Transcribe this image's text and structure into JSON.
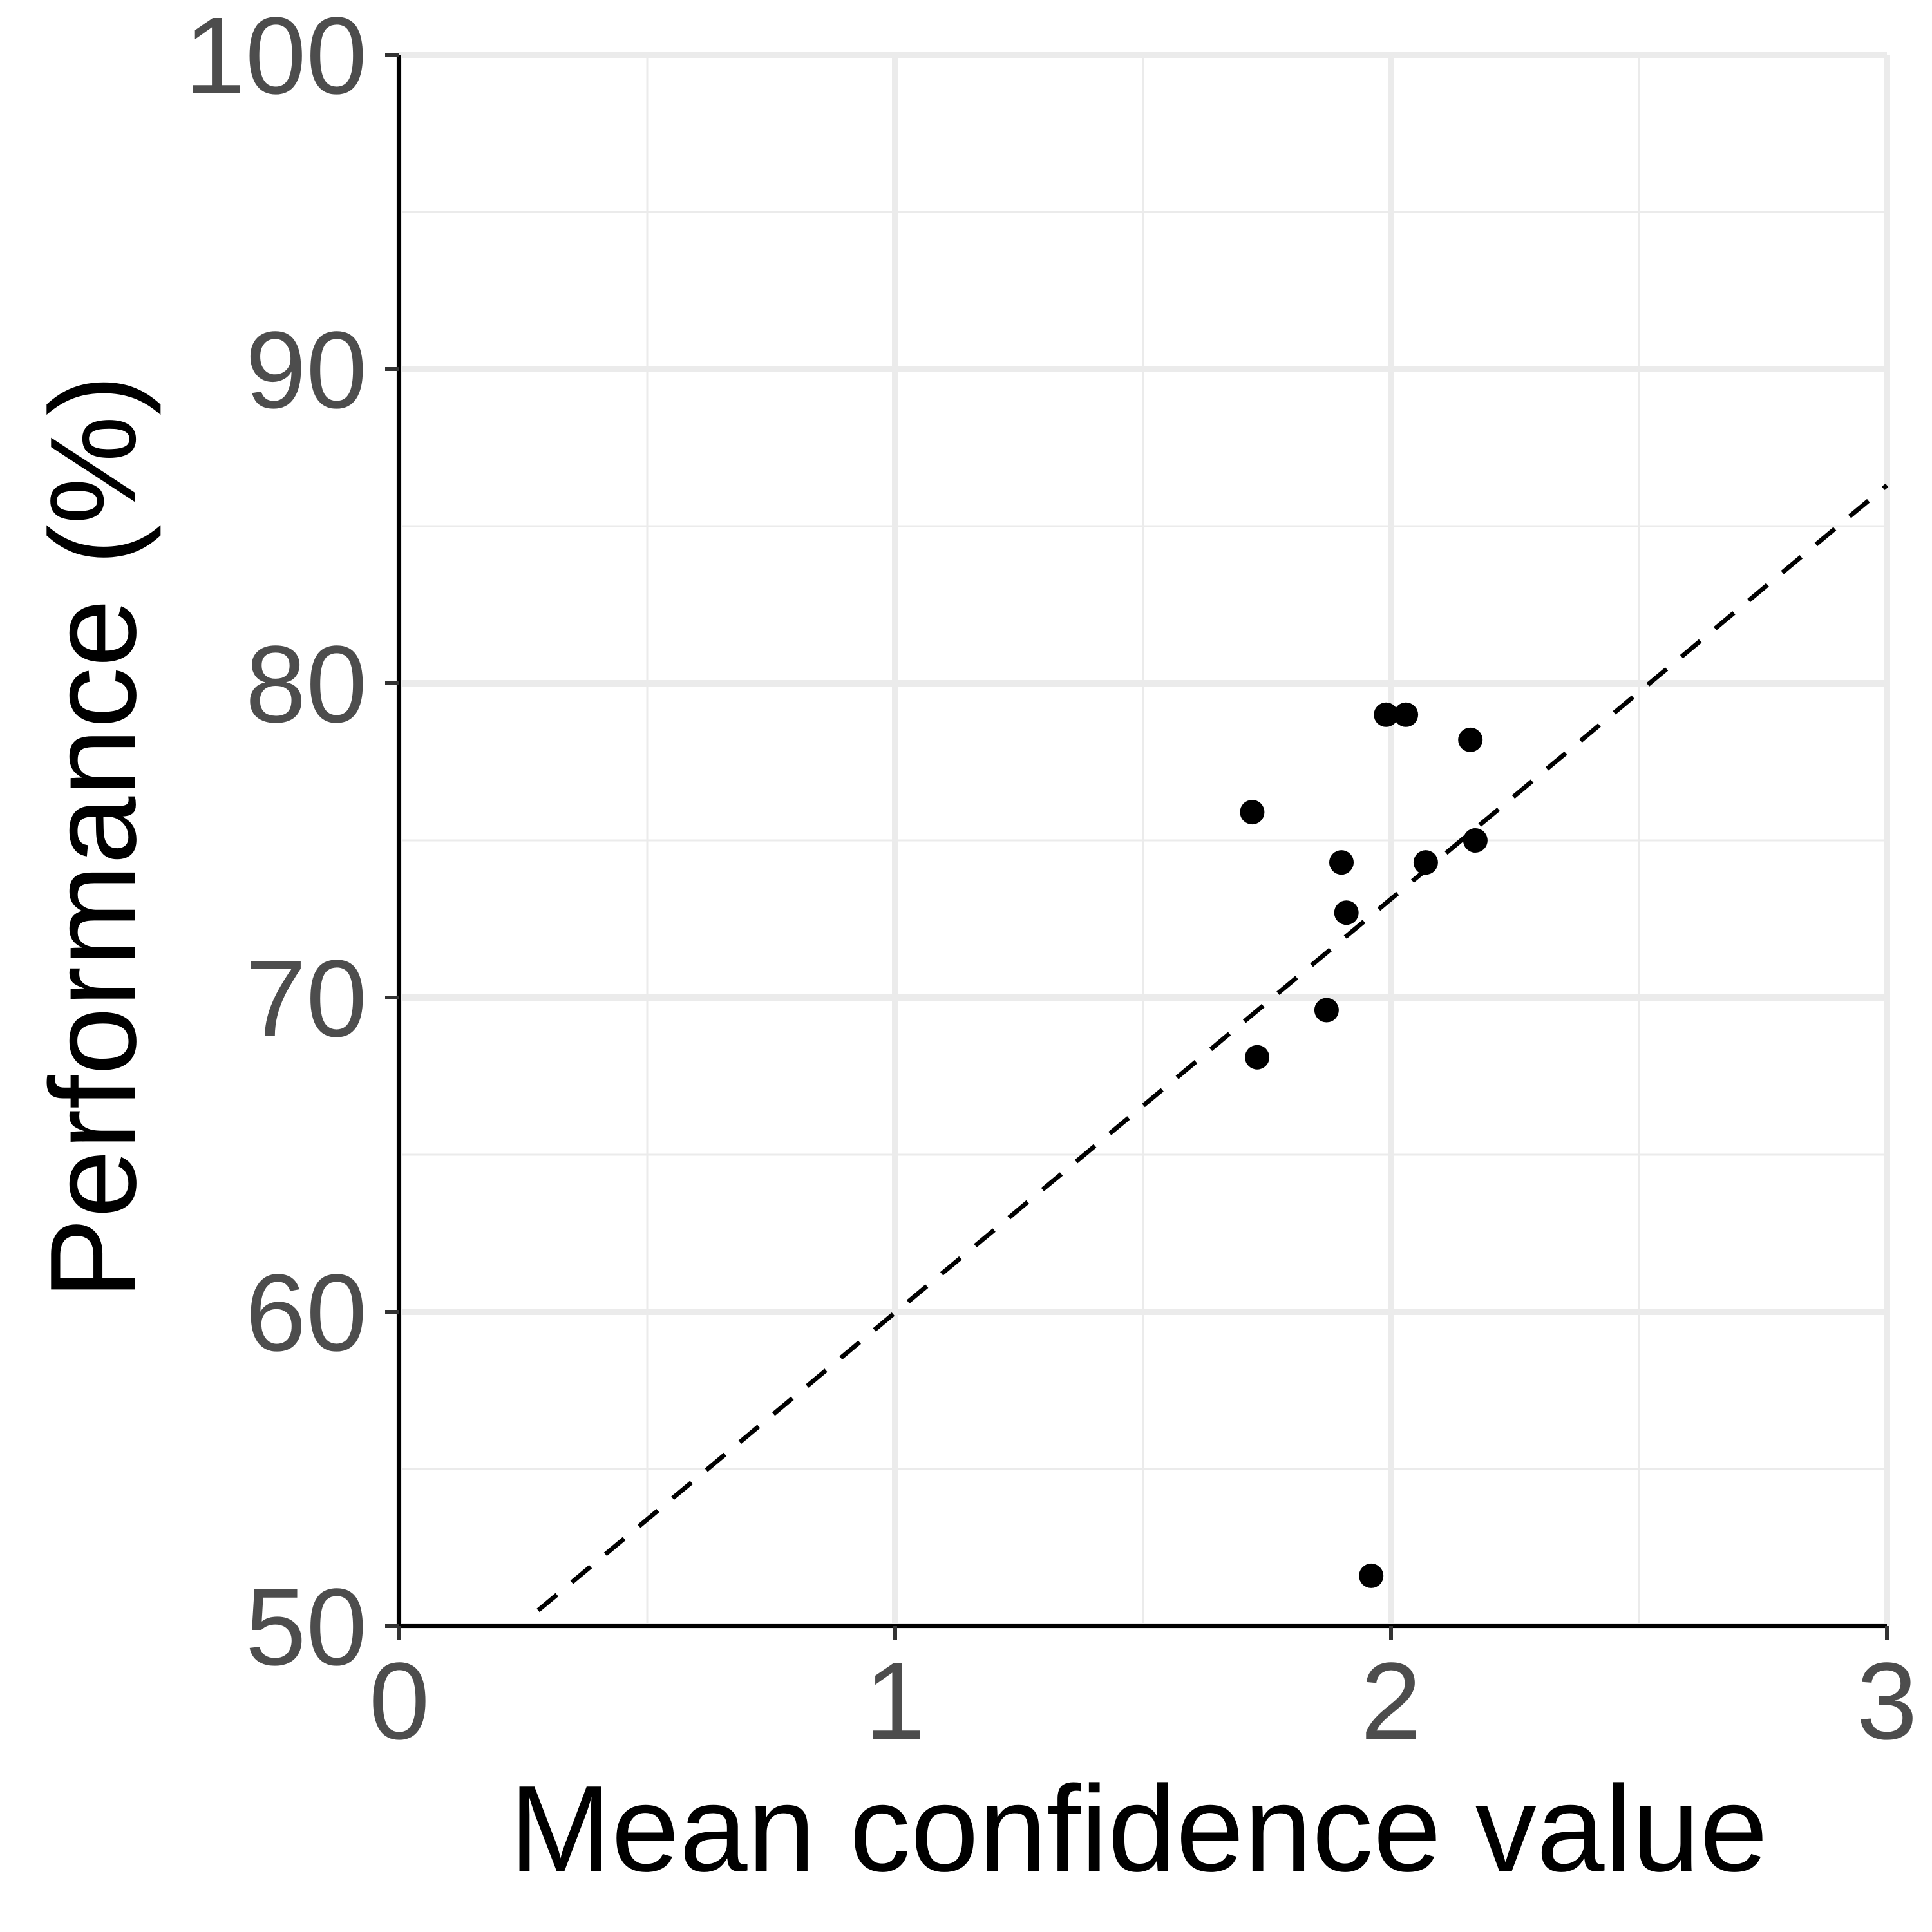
{
  "chart_data": {
    "type": "scatter",
    "title": "",
    "xlabel": "Mean confidence value",
    "ylabel": "Performance (%)",
    "xlim": [
      0,
      3
    ],
    "ylim": [
      50,
      100
    ],
    "x_ticks": [
      0,
      1,
      2,
      3
    ],
    "y_ticks": [
      50,
      60,
      70,
      80,
      90,
      100
    ],
    "grid": true,
    "legend": "none",
    "series": [
      {
        "points": [
          {
            "x": 1.72,
            "y": 75.9
          },
          {
            "x": 1.73,
            "y": 68.1
          },
          {
            "x": 1.87,
            "y": 69.6
          },
          {
            "x": 1.9,
            "y": 74.3
          },
          {
            "x": 1.91,
            "y": 72.7
          },
          {
            "x": 1.96,
            "y": 51.6
          },
          {
            "x": 1.99,
            "y": 79.0
          },
          {
            "x": 2.03,
            "y": 79.0
          },
          {
            "x": 2.07,
            "y": 74.3
          },
          {
            "x": 2.16,
            "y": 78.2
          },
          {
            "x": 2.17,
            "y": 75.0
          }
        ]
      }
    ],
    "reference_line": {
      "style": "dashed",
      "x": [
        0.28,
        3.0
      ],
      "y": [
        50.5,
        86.3
      ]
    },
    "colors": {
      "points": "#000000",
      "grid": "#ebebeb",
      "axis": "#000000",
      "tick_text": "#4d4d4d"
    }
  }
}
